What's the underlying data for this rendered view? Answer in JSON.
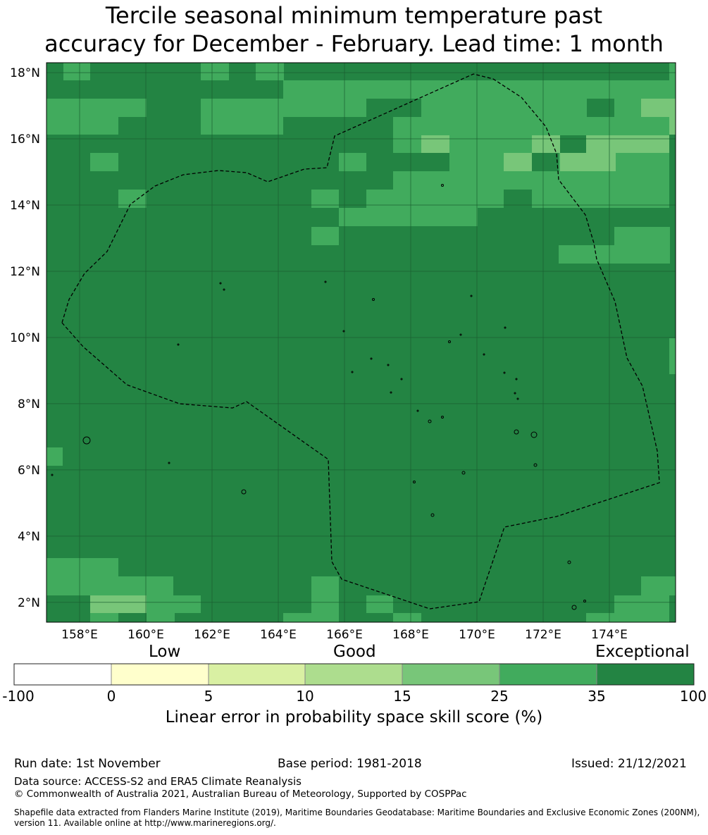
{
  "title": {
    "line1": "Tercile seasonal minimum temperature past",
    "line2": "accuracy for December - February. Lead time: 1 month"
  },
  "map": {
    "lon_range": [
      157.0,
      176.0
    ],
    "lat_range": [
      1.4,
      18.3
    ],
    "lat_ticks": [
      "18°N",
      "16°N",
      "14°N",
      "12°N",
      "10°N",
      "8°N",
      "6°N",
      "4°N",
      "2°N"
    ],
    "lon_ticks": [
      "158°E",
      "160°E",
      "162°E",
      "164°E",
      "166°E",
      "168°E",
      "170°E",
      "172°E",
      "174°E"
    ],
    "colors": {
      "exceptional": "#238443",
      "very_good": "#41ab5d",
      "good": "#78c679",
      "gridline": "#1a5e30",
      "eez_outline": "#000000"
    }
  },
  "colorbar": {
    "headers": {
      "low": "Low",
      "good": "Good",
      "exceptional": "Exceptional"
    },
    "ticks": [
      "-100",
      "0",
      "5",
      "10",
      "15",
      "25",
      "35",
      "100"
    ],
    "colors": [
      "#ffffff",
      "#ffffcc",
      "#d9f0a3",
      "#addd8e",
      "#78c679",
      "#41ab5d",
      "#238443"
    ],
    "label": "Linear error in probability space skill score (%)"
  },
  "footer": {
    "run_date": "Run date: 1st November",
    "base_period": "Base period: 1981-2018",
    "issued": "Issued: 21/12/2021",
    "data_source": "Data source: ACCESS-S2 and ERA5 Climate Reanalysis",
    "copyright": "© Commonwealth of Australia 2021, Australian Bureau of Meteorology, Supported by COSPPac",
    "shapefile_line1": "Shapefile data extracted from Flanders Marine Institute (2019), Maritime Boundaries Geodatabase: Maritime Boundaries and Exclusive Economic Zones (200NM),",
    "shapefile_line2": "version 11. Available online at http://www.marineregions.org/."
  }
}
